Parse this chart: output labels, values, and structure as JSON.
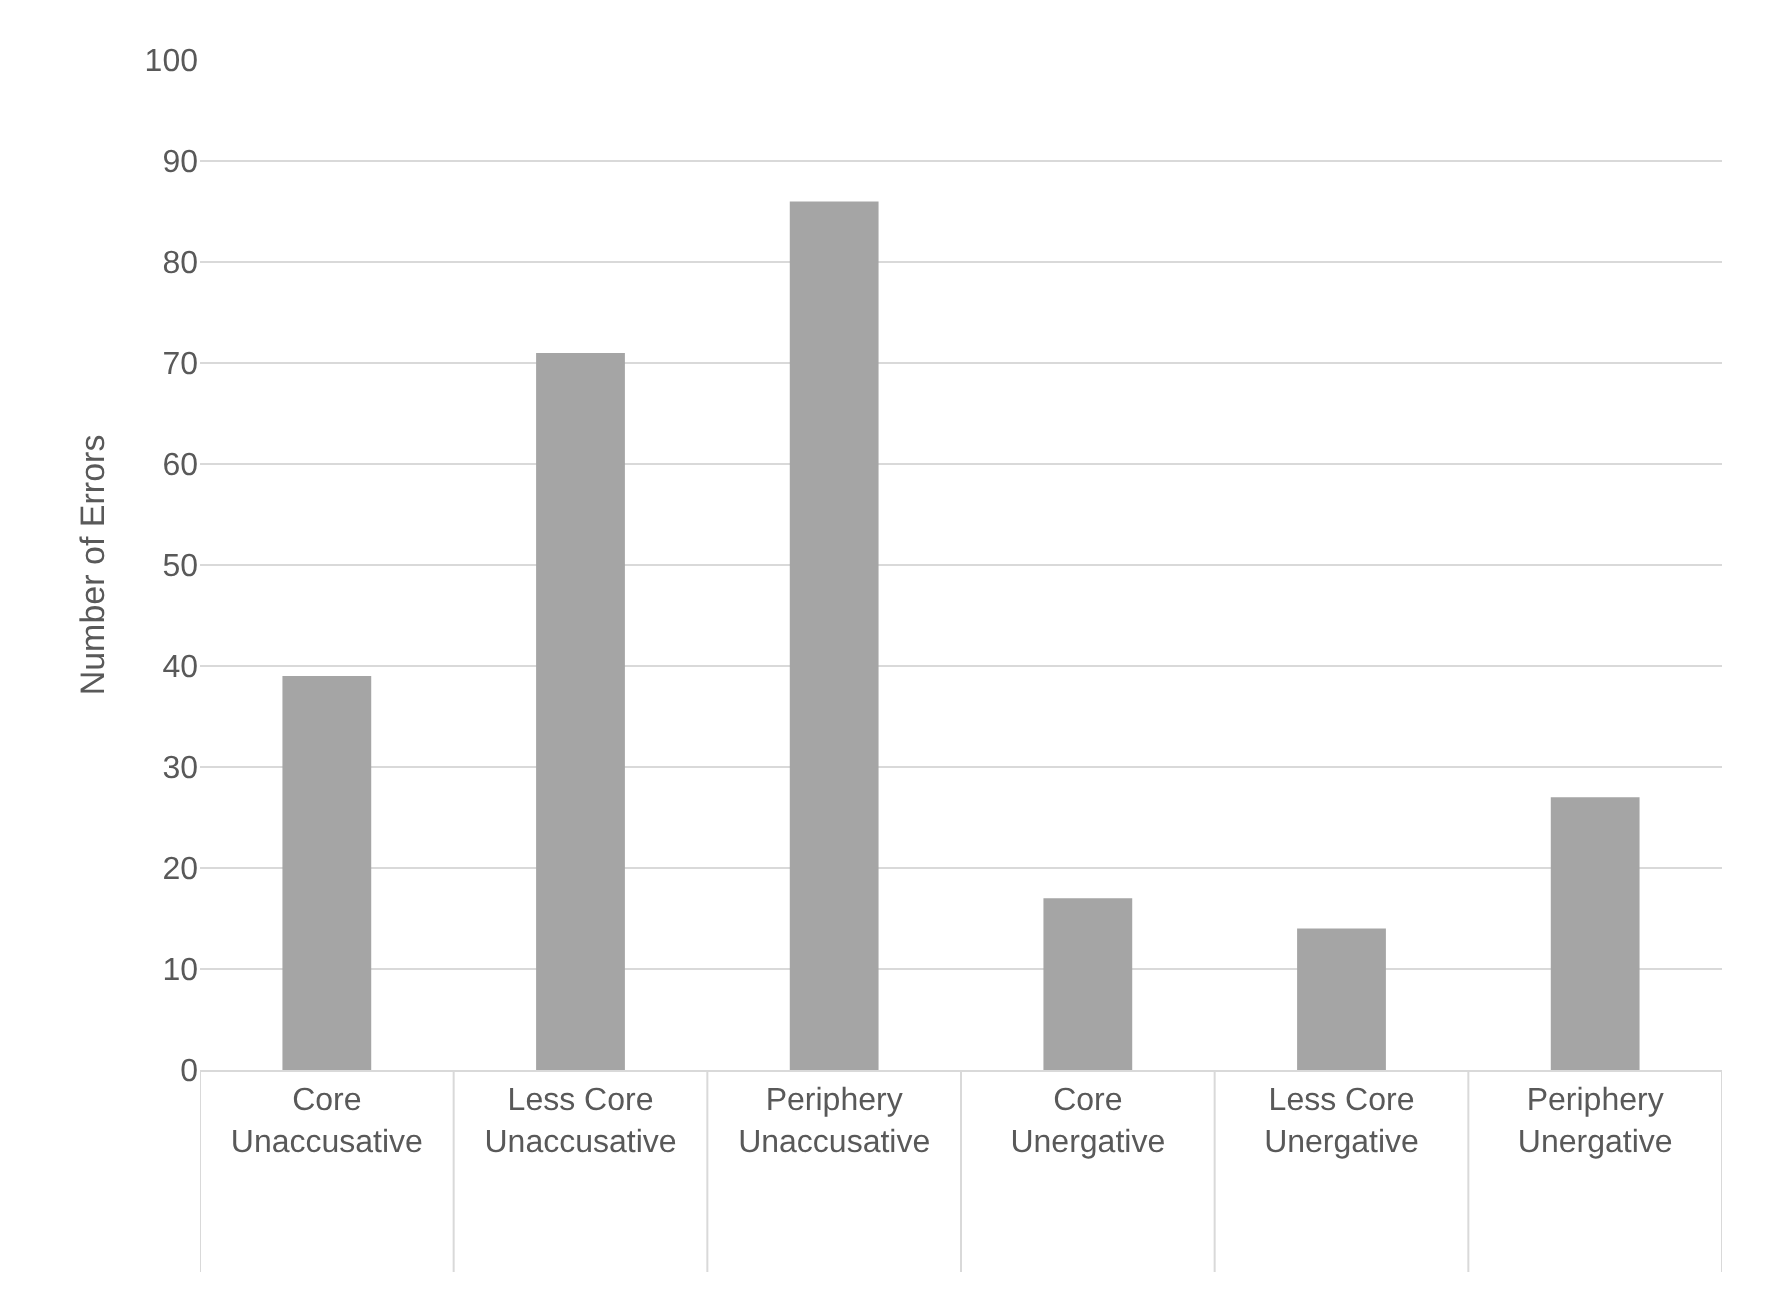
{
  "chart_data": {
    "type": "bar",
    "ylabel": "Number of Errors",
    "categories": [
      "Core\nUnaccusative",
      "Less Core\nUnaccusative",
      "Periphery\nUnaccusative",
      "Core\nUnergative",
      "Less Core\nUnergative",
      "Periphery\nUnergative"
    ],
    "values": [
      39,
      71,
      86,
      17,
      14,
      27
    ],
    "color": "#a5a5a5",
    "ylim": [
      0,
      100
    ],
    "yticks": [
      0,
      10,
      20,
      30,
      40,
      50,
      60,
      70,
      80,
      90,
      100
    ],
    "grid": "y"
  }
}
